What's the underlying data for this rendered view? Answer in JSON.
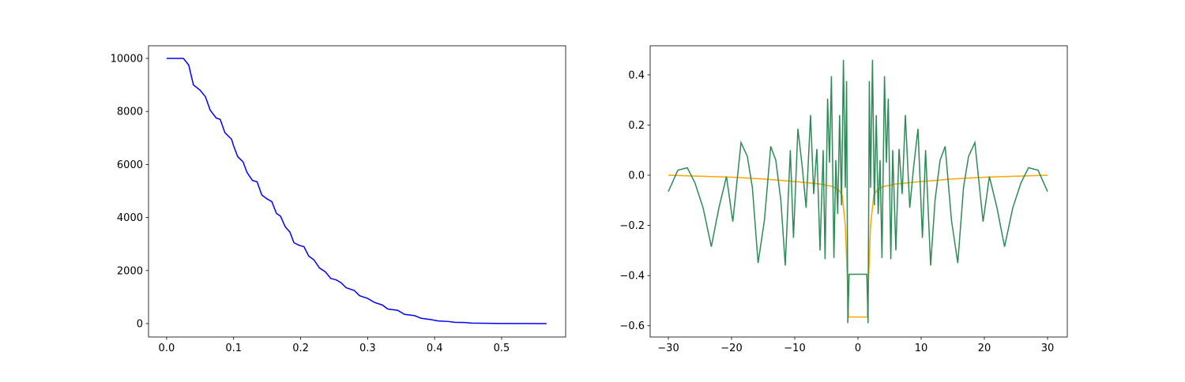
{
  "chart_data": [
    {
      "type": "line",
      "color": "#0000ff",
      "x": [
        0,
        0.025,
        0.033,
        0.04,
        0.05,
        0.058,
        0.065,
        0.074,
        0.08,
        0.087,
        0.097,
        0.1,
        0.106,
        0.114,
        0.12,
        0.128,
        0.135,
        0.142,
        0.15,
        0.157,
        0.164,
        0.17,
        0.177,
        0.184,
        0.19,
        0.198,
        0.205,
        0.212,
        0.22,
        0.228,
        0.237,
        0.245,
        0.253,
        0.26,
        0.268,
        0.28,
        0.288,
        0.3,
        0.31,
        0.322,
        0.33,
        0.345,
        0.355,
        0.37,
        0.38,
        0.395,
        0.405,
        0.42,
        0.43,
        0.445,
        0.455,
        0.48,
        0.5,
        0.53,
        0.567
      ],
      "values": [
        10000,
        10000,
        9750,
        9000,
        8800,
        8550,
        8050,
        7750,
        7700,
        7200,
        6950,
        6700,
        6300,
        6100,
        5700,
        5400,
        5350,
        4850,
        4700,
        4600,
        4150,
        4050,
        3650,
        3450,
        3050,
        2950,
        2900,
        2550,
        2400,
        2100,
        1950,
        1700,
        1650,
        1550,
        1350,
        1250,
        1050,
        950,
        800,
        700,
        550,
        500,
        350,
        300,
        200,
        150,
        100,
        80,
        50,
        40,
        20,
        10,
        5,
        2,
        0
      ],
      "xlim": [
        -0.027,
        0.5955
      ],
      "ylim": [
        -506,
        10476
      ],
      "xticks": [
        {
          "value": 0,
          "label": "0.0"
        },
        0.1,
        0.2,
        0.3,
        0.4,
        0.5
      ],
      "yticks": [
        0,
        2000,
        4000,
        6000,
        8000,
        10000
      ]
    },
    {
      "type": "line",
      "series": [
        {
          "color": "#ffa500",
          "x": [
            -30,
            -20,
            -15,
            -10,
            -6,
            -4,
            -3,
            -2.5,
            -2,
            -1.7,
            -1.5,
            1.5,
            1.7,
            2,
            2.5,
            3,
            4,
            6,
            10,
            15,
            20,
            30
          ],
          "values": [
            0,
            -0.008,
            -0.015,
            -0.025,
            -0.035,
            -0.045,
            -0.06,
            -0.08,
            -0.2,
            -0.4,
            -0.565,
            -0.565,
            -0.4,
            -0.2,
            -0.08,
            -0.06,
            -0.045,
            -0.035,
            -0.025,
            -0.015,
            -0.008,
            0
          ]
        },
        {
          "color": "#2e8b57",
          "x": [
            -30,
            -28.5,
            -27,
            -25.8,
            -24.5,
            -23.2,
            -22,
            -20.8,
            -19.8,
            -18.5,
            -17.5,
            -16.7,
            -15.8,
            -14.8,
            -13.8,
            -13,
            -12.2,
            -11.5,
            -10.7,
            -10.2,
            -9.5,
            -8.8,
            -8.2,
            -7.5,
            -7,
            -6.5,
            -6,
            -5.5,
            -5.2,
            -4.8,
            -4.5,
            -4.2,
            -3.8,
            -3.5,
            -3.2,
            -2.9,
            -2.6,
            -2.3,
            -2,
            -1.8,
            -1.6,
            -1.4,
            1.4,
            1.6,
            1.8,
            2,
            2.3,
            2.6,
            2.9,
            3.2,
            3.5,
            3.8,
            4.2,
            4.5,
            4.8,
            5.2,
            5.5,
            6,
            6.5,
            7,
            7.5,
            8.2,
            8.8,
            9.5,
            10.2,
            10.7,
            11.5,
            12.2,
            13,
            13.8,
            14.8,
            15.8,
            16.7,
            17.5,
            18.5,
            19.8,
            20.8,
            22,
            23.2,
            24.5,
            25.8,
            27,
            28.5,
            30
          ],
          "values": [
            -0.065,
            0.02,
            0.03,
            -0.03,
            -0.13,
            -0.285,
            -0.13,
            -0.005,
            -0.185,
            0.13,
            0.075,
            -0.05,
            -0.35,
            -0.18,
            0.115,
            0.06,
            -0.1,
            -0.36,
            0.1,
            -0.25,
            0.185,
            0.03,
            -0.13,
            0.24,
            -0.075,
            0.105,
            -0.3,
            0.1,
            -0.335,
            0.305,
            0.05,
            0.395,
            -0.33,
            0.06,
            -0.155,
            0.24,
            -0.12,
            0.46,
            -0.05,
            0.375,
            -0.59,
            -0.395,
            -0.395,
            -0.59,
            0.375,
            -0.05,
            0.46,
            -0.12,
            0.24,
            -0.155,
            0.06,
            -0.33,
            0.395,
            0.05,
            0.305,
            -0.335,
            0.1,
            -0.3,
            0.105,
            -0.075,
            0.24,
            -0.13,
            0.03,
            0.185,
            -0.25,
            0.1,
            -0.36,
            -0.1,
            0.06,
            0.115,
            -0.18,
            -0.35,
            -0.05,
            0.075,
            0.13,
            -0.185,
            -0.005,
            -0.13,
            -0.285,
            -0.13,
            -0.03,
            0.03,
            0.02,
            -0.065
          ]
        }
      ],
      "xlim": [
        -32.875,
        33.125
      ],
      "ylim": [
        -0.645,
        0.516
      ],
      "xticks": [
        {
          "value": -30,
          "label": "−30"
        },
        {
          "value": -20,
          "label": "−20"
        },
        {
          "value": -10,
          "label": "−10"
        },
        0,
        10,
        20,
        30
      ],
      "yticks": [
        {
          "value": -0.6,
          "label": "−0.6"
        },
        {
          "value": -0.4,
          "label": "−0.4"
        },
        {
          "value": -0.2,
          "label": "−0.2"
        },
        {
          "value": 0,
          "label": "0.0"
        },
        0.2,
        0.4
      ]
    }
  ]
}
